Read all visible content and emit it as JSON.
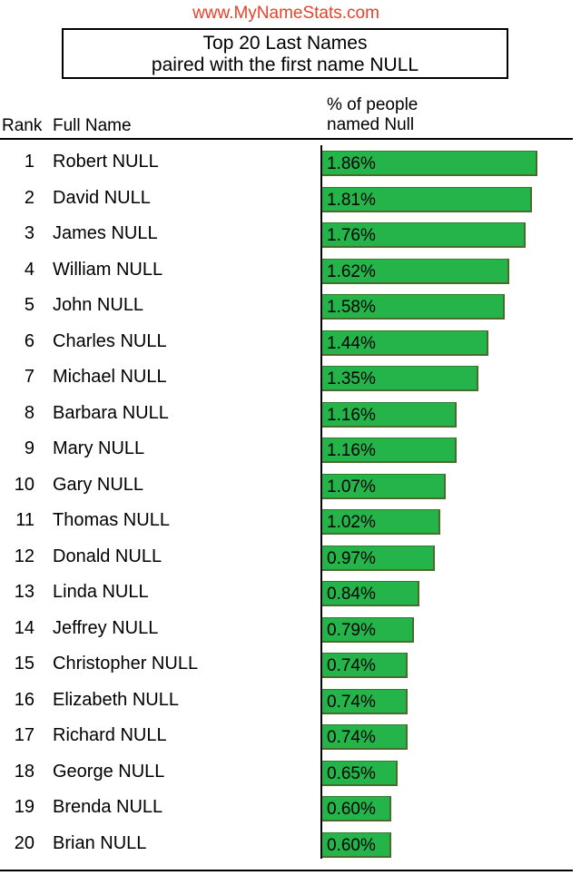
{
  "site": {
    "url_text": "www.MyNameStats.com"
  },
  "title": {
    "line1": "Top 20 Last Names",
    "line2": "paired with the first name NULL"
  },
  "headers": {
    "rank": "Rank",
    "full_name": "Full Name",
    "pct_line1": "% of people",
    "pct_line2": "named Null"
  },
  "colors": {
    "bar": "#25b44a",
    "bar_border": "#4b6b2e",
    "site_url": "#e8412c"
  },
  "chart_data": {
    "type": "bar",
    "orientation": "horizontal",
    "title": "Top 20 Last Names paired with the first name NULL",
    "xlabel": "% of people named Null",
    "ylabel": "Full Name",
    "xlim": [
      0,
      1.86
    ],
    "unit": "%",
    "categories": [
      "Robert NULL",
      "David NULL",
      "James NULL",
      "William NULL",
      "John NULL",
      "Charles NULL",
      "Michael NULL",
      "Barbara NULL",
      "Mary NULL",
      "Gary NULL",
      "Thomas NULL",
      "Donald NULL",
      "Linda NULL",
      "Jeffrey NULL",
      "Christopher NULL",
      "Elizabeth NULL",
      "Richard NULL",
      "George NULL",
      "Brenda NULL",
      "Brian NULL"
    ],
    "ranks": [
      1,
      2,
      3,
      4,
      5,
      6,
      7,
      8,
      9,
      10,
      11,
      12,
      13,
      14,
      15,
      16,
      17,
      18,
      19,
      20
    ],
    "values": [
      1.86,
      1.81,
      1.76,
      1.62,
      1.58,
      1.44,
      1.35,
      1.16,
      1.16,
      1.07,
      1.02,
      0.97,
      0.84,
      0.79,
      0.74,
      0.74,
      0.74,
      0.65,
      0.6,
      0.6
    ],
    "labels": [
      "1.86%",
      "1.81%",
      "1.76%",
      "1.62%",
      "1.58%",
      "1.44%",
      "1.35%",
      "1.16%",
      "1.16%",
      "1.07%",
      "1.02%",
      "0.97%",
      "0.84%",
      "0.79%",
      "0.74%",
      "0.74%",
      "0.74%",
      "0.65%",
      "0.60%",
      "0.60%"
    ]
  }
}
